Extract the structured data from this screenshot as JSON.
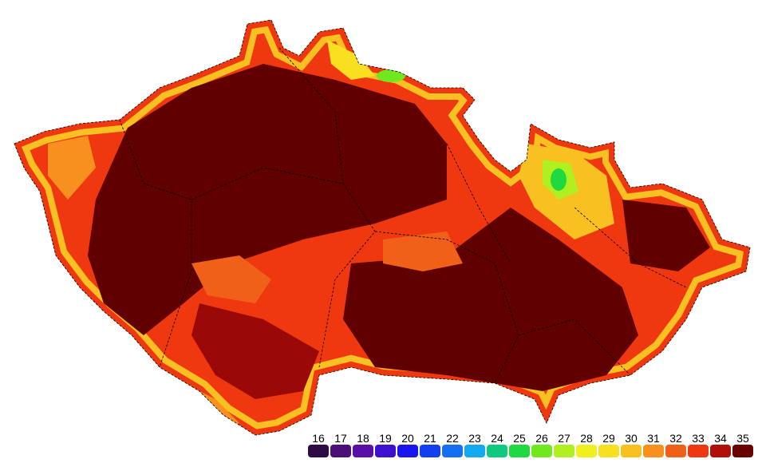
{
  "legend": {
    "items": [
      {
        "value": 16,
        "color": "#2e0b44"
      },
      {
        "value": 17,
        "color": "#4b0f7a"
      },
      {
        "value": 18,
        "color": "#5a10a8"
      },
      {
        "value": 19,
        "color": "#3d10d0"
      },
      {
        "value": 20,
        "color": "#1a14f0"
      },
      {
        "value": 21,
        "color": "#1040f0"
      },
      {
        "value": 22,
        "color": "#1470f0"
      },
      {
        "value": 23,
        "color": "#14a8f0"
      },
      {
        "value": 24,
        "color": "#10c880"
      },
      {
        "value": 25,
        "color": "#20d840"
      },
      {
        "value": 26,
        "color": "#70e820"
      },
      {
        "value": 27,
        "color": "#b0f020"
      },
      {
        "value": 28,
        "color": "#f0f020"
      },
      {
        "value": 29,
        "color": "#f8e020"
      },
      {
        "value": 30,
        "color": "#f8c020"
      },
      {
        "value": 31,
        "color": "#f89020"
      },
      {
        "value": 32,
        "color": "#f06018"
      },
      {
        "value": 33,
        "color": "#f03810"
      },
      {
        "value": 34,
        "color": "#b01008"
      },
      {
        "value": 35,
        "color": "#680000"
      }
    ]
  }
}
